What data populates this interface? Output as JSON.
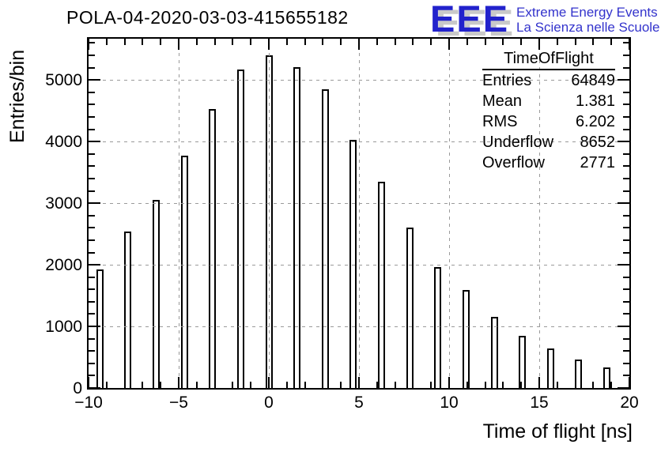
{
  "header": {
    "title": "POLA-04-2020-03-03-415655182",
    "logo": {
      "acronym": "EEE",
      "line1": "Extreme Energy Events",
      "line2": "La Scienza nelle Scuole",
      "blue": "#2222cc",
      "text_blue": "#3333cc",
      "shadow_gray": "#c9c9c9"
    }
  },
  "stats": {
    "title": "TimeOfFlight",
    "rows": [
      {
        "label": "Entries",
        "value": "64849"
      },
      {
        "label": "Mean",
        "value": "1.381"
      },
      {
        "label": "RMS",
        "value": "6.202"
      },
      {
        "label": "Underflow",
        "value": "8652"
      },
      {
        "label": "Overflow",
        "value": "2771"
      }
    ]
  },
  "chart_data": {
    "type": "bar",
    "title": "POLA-04-2020-03-03-415655182",
    "xlabel": "Time of flight [ns]",
    "ylabel": "Entries/bin",
    "xlim": [
      -10,
      20
    ],
    "ylim": [
      0,
      5670
    ],
    "grid": true,
    "grid_style": "dashed-gray",
    "bar_fill": "#ffffff",
    "bar_edge": "#000000",
    "bin_width_ns": 0.4,
    "x": [
      -9.375,
      -7.8125,
      -6.25,
      -4.6875,
      -3.125,
      -1.5625,
      0,
      1.5625,
      3.125,
      4.6875,
      6.25,
      7.8125,
      9.375,
      10.9375,
      12.5,
      14.0625,
      15.625,
      17.1875,
      18.75
    ],
    "values": [
      1920,
      2540,
      3050,
      3770,
      4530,
      5170,
      5400,
      5210,
      4850,
      4030,
      3350,
      2600,
      1960,
      1590,
      1150,
      850,
      640,
      460,
      330
    ],
    "x_major_ticks": [
      -10,
      -5,
      0,
      5,
      10,
      15,
      20
    ],
    "x_tick_labels": [
      "−10",
      "−5",
      "0",
      "5",
      "10",
      "15",
      "20"
    ],
    "x_minor_step": 1,
    "y_major_ticks": [
      0,
      1000,
      2000,
      3000,
      4000,
      5000
    ],
    "y_tick_labels": [
      "0",
      "1000",
      "2000",
      "3000",
      "4000",
      "5000"
    ],
    "y_minor_step": 200,
    "x_gridlines": [
      -5,
      0,
      5,
      10,
      15
    ],
    "y_gridlines": [
      1000,
      2000,
      3000,
      4000,
      5000
    ]
  }
}
